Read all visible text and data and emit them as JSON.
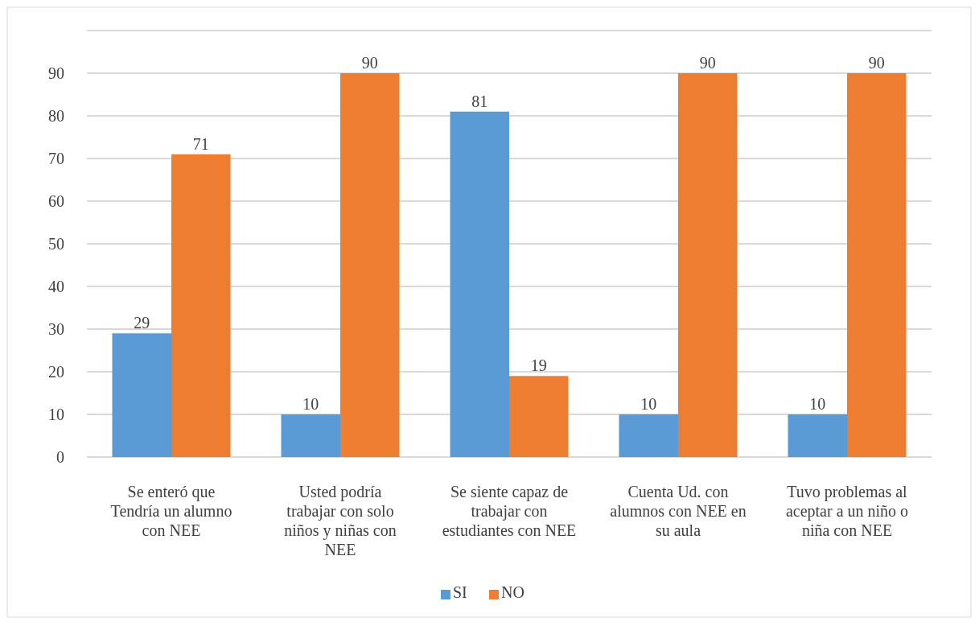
{
  "chart_data": {
    "type": "bar",
    "categories": [
      "Se enteró que Tendría un alumno con NEE",
      "Usted podría trabajar con solo niños y niñas con NEE",
      "Se siente capaz de trabajar con estudiantes con NEE",
      "Cuenta Ud. con alumnos con NEE en su aula",
      "Tuvo problemas al aceptar a un niño o niña con NEE"
    ],
    "series": [
      {
        "name": "SI",
        "color": "#5b9bd5",
        "values": [
          29,
          10,
          81,
          10,
          10
        ]
      },
      {
        "name": "NO",
        "color": "#ed7d31",
        "values": [
          71,
          90,
          19,
          90,
          90
        ]
      }
    ],
    "ylim": [
      0,
      100
    ],
    "yticks": [
      0,
      10,
      20,
      30,
      40,
      50,
      60,
      70,
      80,
      90,
      {
        "value": 100,
        "label": null
      }
    ],
    "grid": "y",
    "legend": "bottom",
    "data_labels": true
  }
}
